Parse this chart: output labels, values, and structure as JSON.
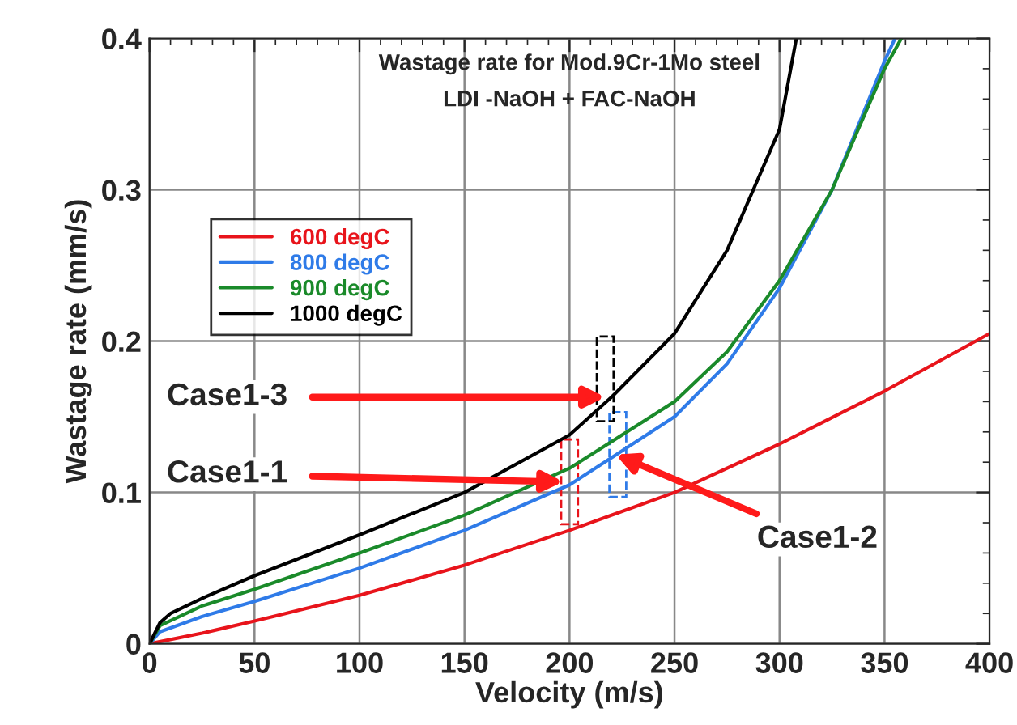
{
  "chart_data": {
    "type": "line",
    "title": "Wastage rate for Mod.9Cr-1Mo steel",
    "subtitle": "LDI -NaOH + FAC-NaOH",
    "xlabel": "Velocity (m/s)",
    "ylabel": "Wastage rate (mm/s)",
    "xlim": [
      0,
      400
    ],
    "xticks": [
      0,
      50,
      100,
      150,
      200,
      250,
      300,
      350,
      400
    ],
    "ylim": [
      0,
      0.4
    ],
    "yticks": [
      0,
      0.1,
      0.2,
      0.3,
      0.4
    ],
    "grid": true,
    "legend": "top left",
    "marker": "none",
    "line_style": "solid",
    "series": [
      {
        "name": "600 degC",
        "color": "#e8141b",
        "x": [
          0,
          25,
          50,
          100,
          150,
          200,
          250,
          300,
          350,
          400
        ],
        "values": [
          0,
          0.007,
          0.015,
          0.032,
          0.052,
          0.075,
          0.1,
          0.132,
          0.167,
          0.205
        ]
      },
      {
        "name": "800 degC",
        "color": "#2f7be8",
        "x": [
          0,
          5,
          25,
          50,
          100,
          150,
          200,
          250,
          275,
          300,
          325,
          350,
          355
        ],
        "values": [
          0,
          0.008,
          0.018,
          0.028,
          0.05,
          0.075,
          0.105,
          0.15,
          0.185,
          0.235,
          0.3,
          0.385,
          0.4
        ]
      },
      {
        "name": "900 degC",
        "color": "#1a8a2a",
        "x": [
          0,
          5,
          25,
          50,
          100,
          150,
          200,
          250,
          275,
          300,
          325,
          350,
          358
        ],
        "values": [
          0,
          0.012,
          0.025,
          0.036,
          0.06,
          0.085,
          0.116,
          0.16,
          0.193,
          0.24,
          0.3,
          0.38,
          0.4
        ]
      },
      {
        "name": "1000 degC",
        "color": "#000000",
        "x": [
          0,
          5,
          10,
          25,
          50,
          100,
          150,
          200,
          220,
          250,
          275,
          300,
          308
        ],
        "values": [
          0,
          0.014,
          0.02,
          0.03,
          0.045,
          0.072,
          0.1,
          0.138,
          0.163,
          0.205,
          0.26,
          0.34,
          0.4
        ]
      }
    ],
    "annotations": [
      {
        "text": "Case1-1",
        "x": 197,
        "y": 0.107
      },
      {
        "text": "Case1-2",
        "x": 222,
        "y": 0.125
      },
      {
        "text": "Case1-3",
        "x": 217,
        "y": 0.163
      }
    ]
  }
}
